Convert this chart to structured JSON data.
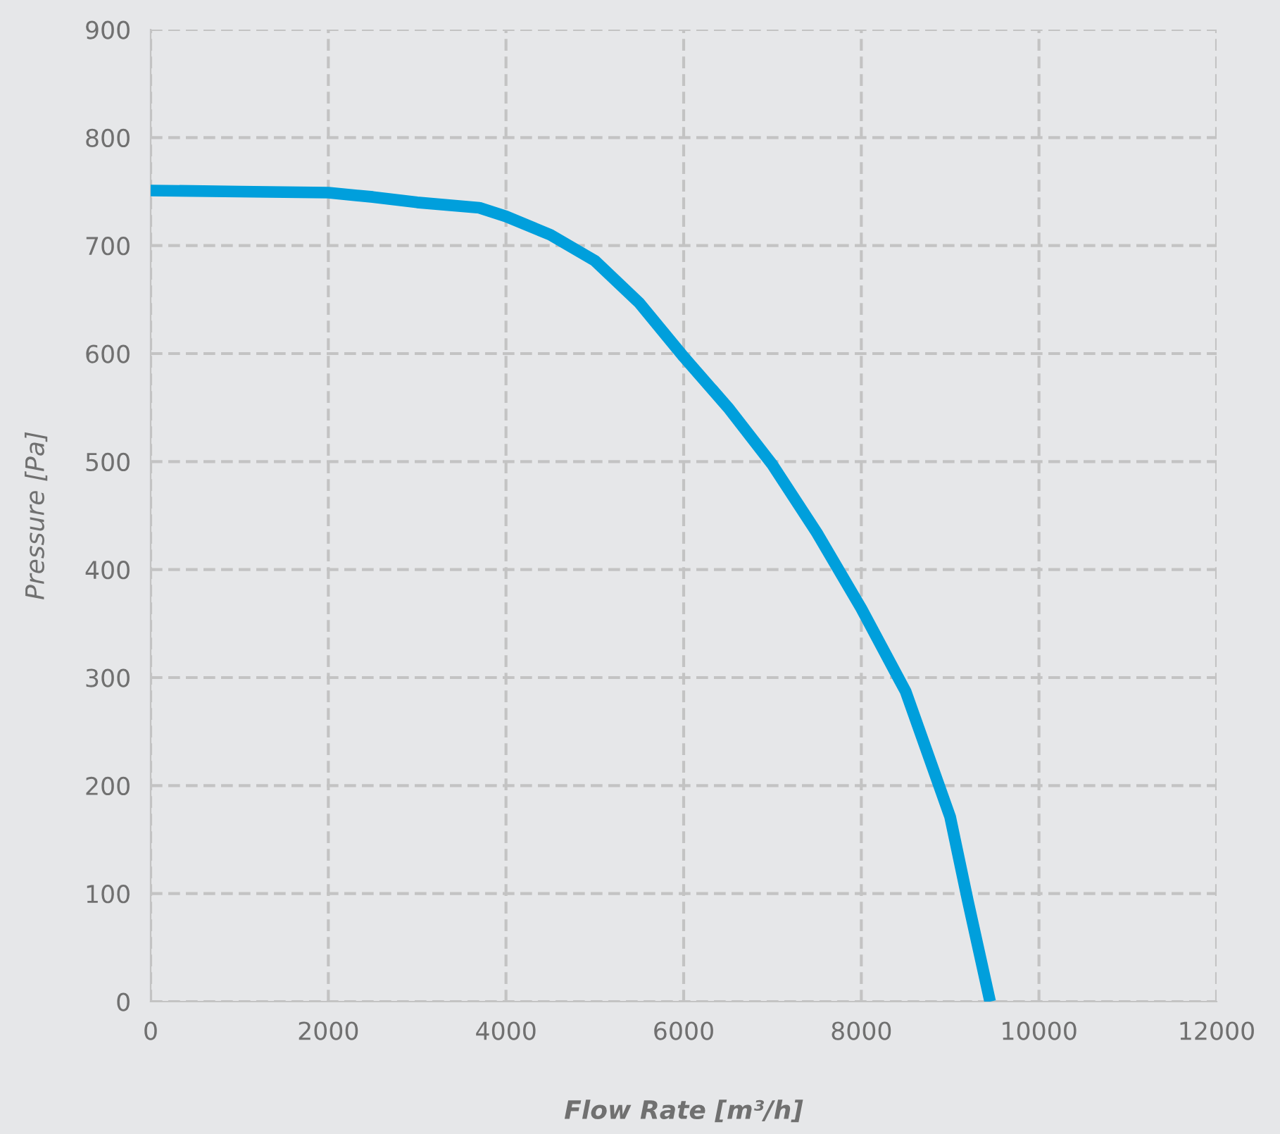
{
  "chart_data": {
    "type": "line",
    "xlabel": "Flow Rate [m³/h]",
    "ylabel": "Pressure [Pa]",
    "series": [
      {
        "color": "#009fdc",
        "x": [
          0,
          1000,
          2000,
          2500,
          3000,
          3700,
          4000,
          4500,
          5000,
          5500,
          6000,
          6500,
          7000,
          7500,
          8000,
          8500,
          9000,
          9200,
          9450
        ],
        "values": [
          751,
          750,
          749,
          745,
          740,
          735,
          727,
          710,
          686,
          647,
          597,
          550,
          497,
          434,
          364,
          287,
          171,
          93,
          0
        ]
      }
    ],
    "xlim": [
      0,
      12000
    ],
    "xticks": [
      0,
      2000,
      4000,
      6000,
      8000,
      10000,
      12000
    ],
    "ylim": [
      0,
      900
    ],
    "yticks": [
      0,
      100,
      200,
      300,
      400,
      500,
      600,
      700,
      800,
      900
    ],
    "grid": true,
    "line_style": "solid",
    "marker": "none"
  }
}
